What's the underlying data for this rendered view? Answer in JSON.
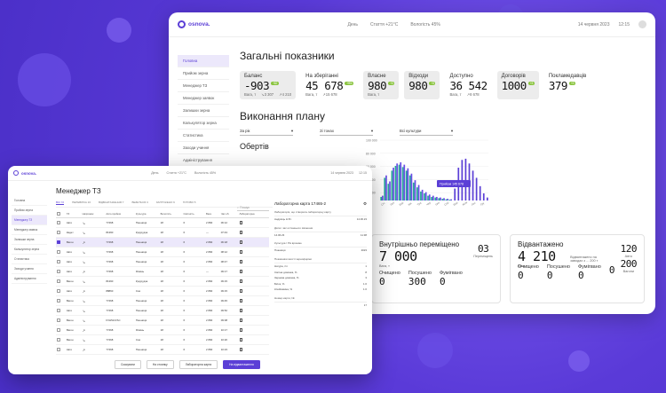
{
  "colors": {
    "accent": "#5b3fd6",
    "teal": "#2aa89a",
    "green": "#8ac43f",
    "purple_bar": "#5b3fd6"
  },
  "back": {
    "brand": "osnova.",
    "top_center": [
      "День",
      "Стаття +21°C",
      "Вологість 45%"
    ],
    "top_right": [
      "14 червня 2023",
      "12:15"
    ],
    "sidebar": [
      "Головна",
      "Прийом зерна",
      "Менеджер ТЗ",
      "Менеджер заявок",
      "Залишки зерна",
      "Калькулятор зерна",
      "Статистика",
      "Заходи учиння",
      "Адміністрування"
    ],
    "title": "Загальні показники",
    "kpis": [
      {
        "label": "Баланс",
        "value": "-903",
        "badge": "+10",
        "sub1": "Вага, т",
        "sub2": "↘3 307",
        "sub3": "↗4 210",
        "gray": true
      },
      {
        "label": "На зберіганні",
        "value": "45 678",
        "badge": "+9%",
        "sub1": "Вага, т",
        "sub2": "↗15 678",
        "sub3": "",
        "gray": false
      },
      {
        "label": "Власне",
        "value": "980",
        "badge": "+3",
        "sub1": "Вага, т",
        "sub2": "",
        "sub3": "",
        "gray": true
      },
      {
        "label": "Відходи",
        "value": "980",
        "badge": "+3",
        "sub1": "",
        "sub2": "",
        "sub3": "",
        "gray": true
      },
      {
        "label": "Доступно",
        "value": "36 542",
        "badge": "",
        "sub1": "Вага, т",
        "sub2": "↗8 678",
        "sub3": "",
        "gray": false
      },
      {
        "label": "Договорів",
        "value": "1000",
        "badge": "+3",
        "sub1": "",
        "sub2": "",
        "sub3": "",
        "gray": true
      },
      {
        "label": "Покламедавців",
        "value": "379",
        "badge": "+3",
        "sub1": "",
        "sub2": "",
        "sub3": "",
        "gray": false
      }
    ],
    "title2": "Виконання плану",
    "filters": [
      "За рік",
      "Зі тонах",
      "Всі культури"
    ],
    "obertiv": "Обертів",
    "card1": {
      "title": "Внутрішньо переміщено",
      "value": "7 000",
      "unit": "Вага, т",
      "side_value": "03",
      "side_label": "Переміщень",
      "cols": [
        {
          "label": "Очищено",
          "value": "0"
        },
        {
          "label": "Посушено",
          "value": "300"
        },
        {
          "label": "Фумігвано",
          "value": "0"
        }
      ]
    },
    "card2": {
      "title": "Відвантажено",
      "value": "4 210",
      "unit": "Вага, т",
      "note": "Відвантажено на заводах з ... 200 т",
      "side1": "120",
      "side1_label": "Авто",
      "side2": "200",
      "side2_label": "Вагони",
      "cols": [
        {
          "label": "Очищено",
          "value": "0"
        },
        {
          "label": "Посушено",
          "value": "0"
        },
        {
          "label": "Фумігвано",
          "value": "0"
        },
        {
          "label": "",
          "value": "0"
        }
      ]
    }
  },
  "chart_data": {
    "type": "bar",
    "title": "",
    "xlabel": "",
    "ylabel": "",
    "y_ticks": [
      "100 000",
      "80 000",
      "60 000",
      "40 000",
      "20 000"
    ],
    "ylim": [
      0,
      110000
    ],
    "tooltip": "Прийом 145 678",
    "x_ticks": [
      "Січ",
      "Лют",
      "Бер",
      "Кві",
      "Тра",
      "Чер",
      "Лип",
      "Сер",
      "Вер",
      "Жов",
      "Лис",
      "Гру"
    ],
    "series": [
      {
        "name": "",
        "color": "#2aa89a",
        "values": [
          6000,
          38000,
          28000,
          50000,
          58000,
          60000,
          56000,
          50000,
          42000,
          30000,
          22000,
          15000,
          12000,
          8000,
          6000,
          5000,
          4000,
          3000,
          2000,
          1500
        ]
      },
      {
        "name": "",
        "color": "#5b3fd6",
        "values": [
          8000,
          42000,
          32000,
          55000,
          62000,
          64000,
          60000,
          54000,
          45000,
          34000,
          26000,
          18000,
          14000,
          10000,
          8000,
          6000,
          5000,
          4000,
          3000,
          2000,
          20000,
          55000,
          68000,
          70000,
          62000,
          50000,
          38000,
          24000,
          12000,
          5000
        ]
      }
    ]
  },
  "front": {
    "brand": "osnova.",
    "top_center": [
      "День",
      "Стаття +21°C",
      "Вологість 45%"
    ],
    "top_right": [
      "14 червня 2023",
      "12:15"
    ],
    "sidebar": [
      "Головна",
      "Прийом зерна",
      "Менеджер ТЗ",
      "Менеджер заявок",
      "Залишки зерна",
      "Калькулятор зерна",
      "Статистика",
      "Заходи учиння",
      "Адміністрування"
    ],
    "title": "Менеджер ТЗ",
    "tabs": [
      "ВСІ 72",
      "ПЕРЕВІРКА 16",
      "ВІДВАНТАЖЕННЯ 7",
      "ВЕЗЕТЬСЯ 3",
      "ЗАГРУЖЕНО 9",
      "ГОТОВО 5"
    ],
    "search_placeholder": "Пошук",
    "columns": [
      "ТЗ",
      "Напрямок",
      "Авто.прийом",
      "Культура",
      "Вологість",
      "Смітність",
      "Вага",
      "Час об.",
      "Лабораторна"
    ],
    "rows": [
      [
        "Авто",
        "↘",
        "77468",
        "Пшениця",
        "18",
        "6",
        "2 890",
        "06:12"
      ],
      [
        "Кадет",
        "↘",
        "81390",
        "Кукурудза",
        "18",
        "6",
        "—",
        "07:43"
      ],
      [
        "Вагон",
        "↗",
        "77468",
        "Пшениця",
        "18",
        "6",
        "2 890",
        "06:18"
      ],
      [
        "Авто",
        "↘",
        "77468",
        "Пшениця",
        "18",
        "6",
        "2 890",
        "08:12"
      ],
      [
        "Авто",
        "↘",
        "77468",
        "Пшениця",
        "18",
        "6",
        "2 890",
        "08:47"
      ],
      [
        "Авто",
        "↗",
        "77468",
        "Ячмінь",
        "18",
        "6",
        "—",
        "09:17"
      ],
      [
        "Вагон",
        "↘",
        "81390",
        "Кукурудза",
        "18",
        "6",
        "2 890",
        "09:15"
      ],
      [
        "Авто",
        "↗",
        "88860",
        "Соя",
        "18",
        "6",
        "2 890",
        "09:15"
      ],
      [
        "Вагон",
        "↘",
        "77468",
        "Пшениця",
        "18",
        "6",
        "2 890",
        "09:45"
      ],
      [
        "Авто",
        "↘",
        "77468",
        "Пшениця",
        "18",
        "6",
        "2 890",
        "09:52"
      ],
      [
        "Вагон",
        "↘",
        "FVH5217AC",
        "Пшениця",
        "18",
        "6",
        "2 890",
        "09:08"
      ],
      [
        "Вагон",
        "↗",
        "77468",
        "Ячмінь",
        "18",
        "6",
        "2 890",
        "10:17"
      ],
      [
        "Вагон",
        "↘",
        "77468",
        "Соя",
        "18",
        "6",
        "2 890",
        "10:20"
      ],
      [
        "Авто",
        "↗",
        "77468",
        "Пшениця",
        "18",
        "6",
        "2 890",
        "10:23"
      ]
    ],
    "panel": {
      "title": "Лабораторна карта 17465-2",
      "sections": [
        {
          "head": "Лабораторія, що створила лабораторну карту",
          "rows": [
            [
              "Андрієць Н.Ю.",
              "14.06.23"
            ]
          ]
        },
        {
          "head": "Дата і час останнього змінення",
          "rows": [
            [
              "14.06.23",
              "11:38"
            ]
          ]
        },
        {
          "head": "Культура / Рік врожаю",
          "rows": [
            [
              "Пшениця",
              "2023"
            ]
          ]
        },
        {
          "head": "Показники якості зерноформи",
          "rows": [
            [
              "Натура, г/л",
              "1"
            ],
            [
              "Смітна домішка, %",
              "8"
            ],
            [
              "Зернова домішка, %",
              "3"
            ],
            [
              "Білок, %",
              "1.6"
            ],
            [
              "Клейковина, %",
              "1.6"
            ]
          ]
        },
        {
          "head": "Номер карти, №",
          "rows": [
            [
              "",
              "17"
            ]
          ]
        }
      ]
    },
    "footer": [
      "Скасувати",
      "На стоянку",
      "Лабораторна карта",
      "На відвантаження"
    ]
  }
}
